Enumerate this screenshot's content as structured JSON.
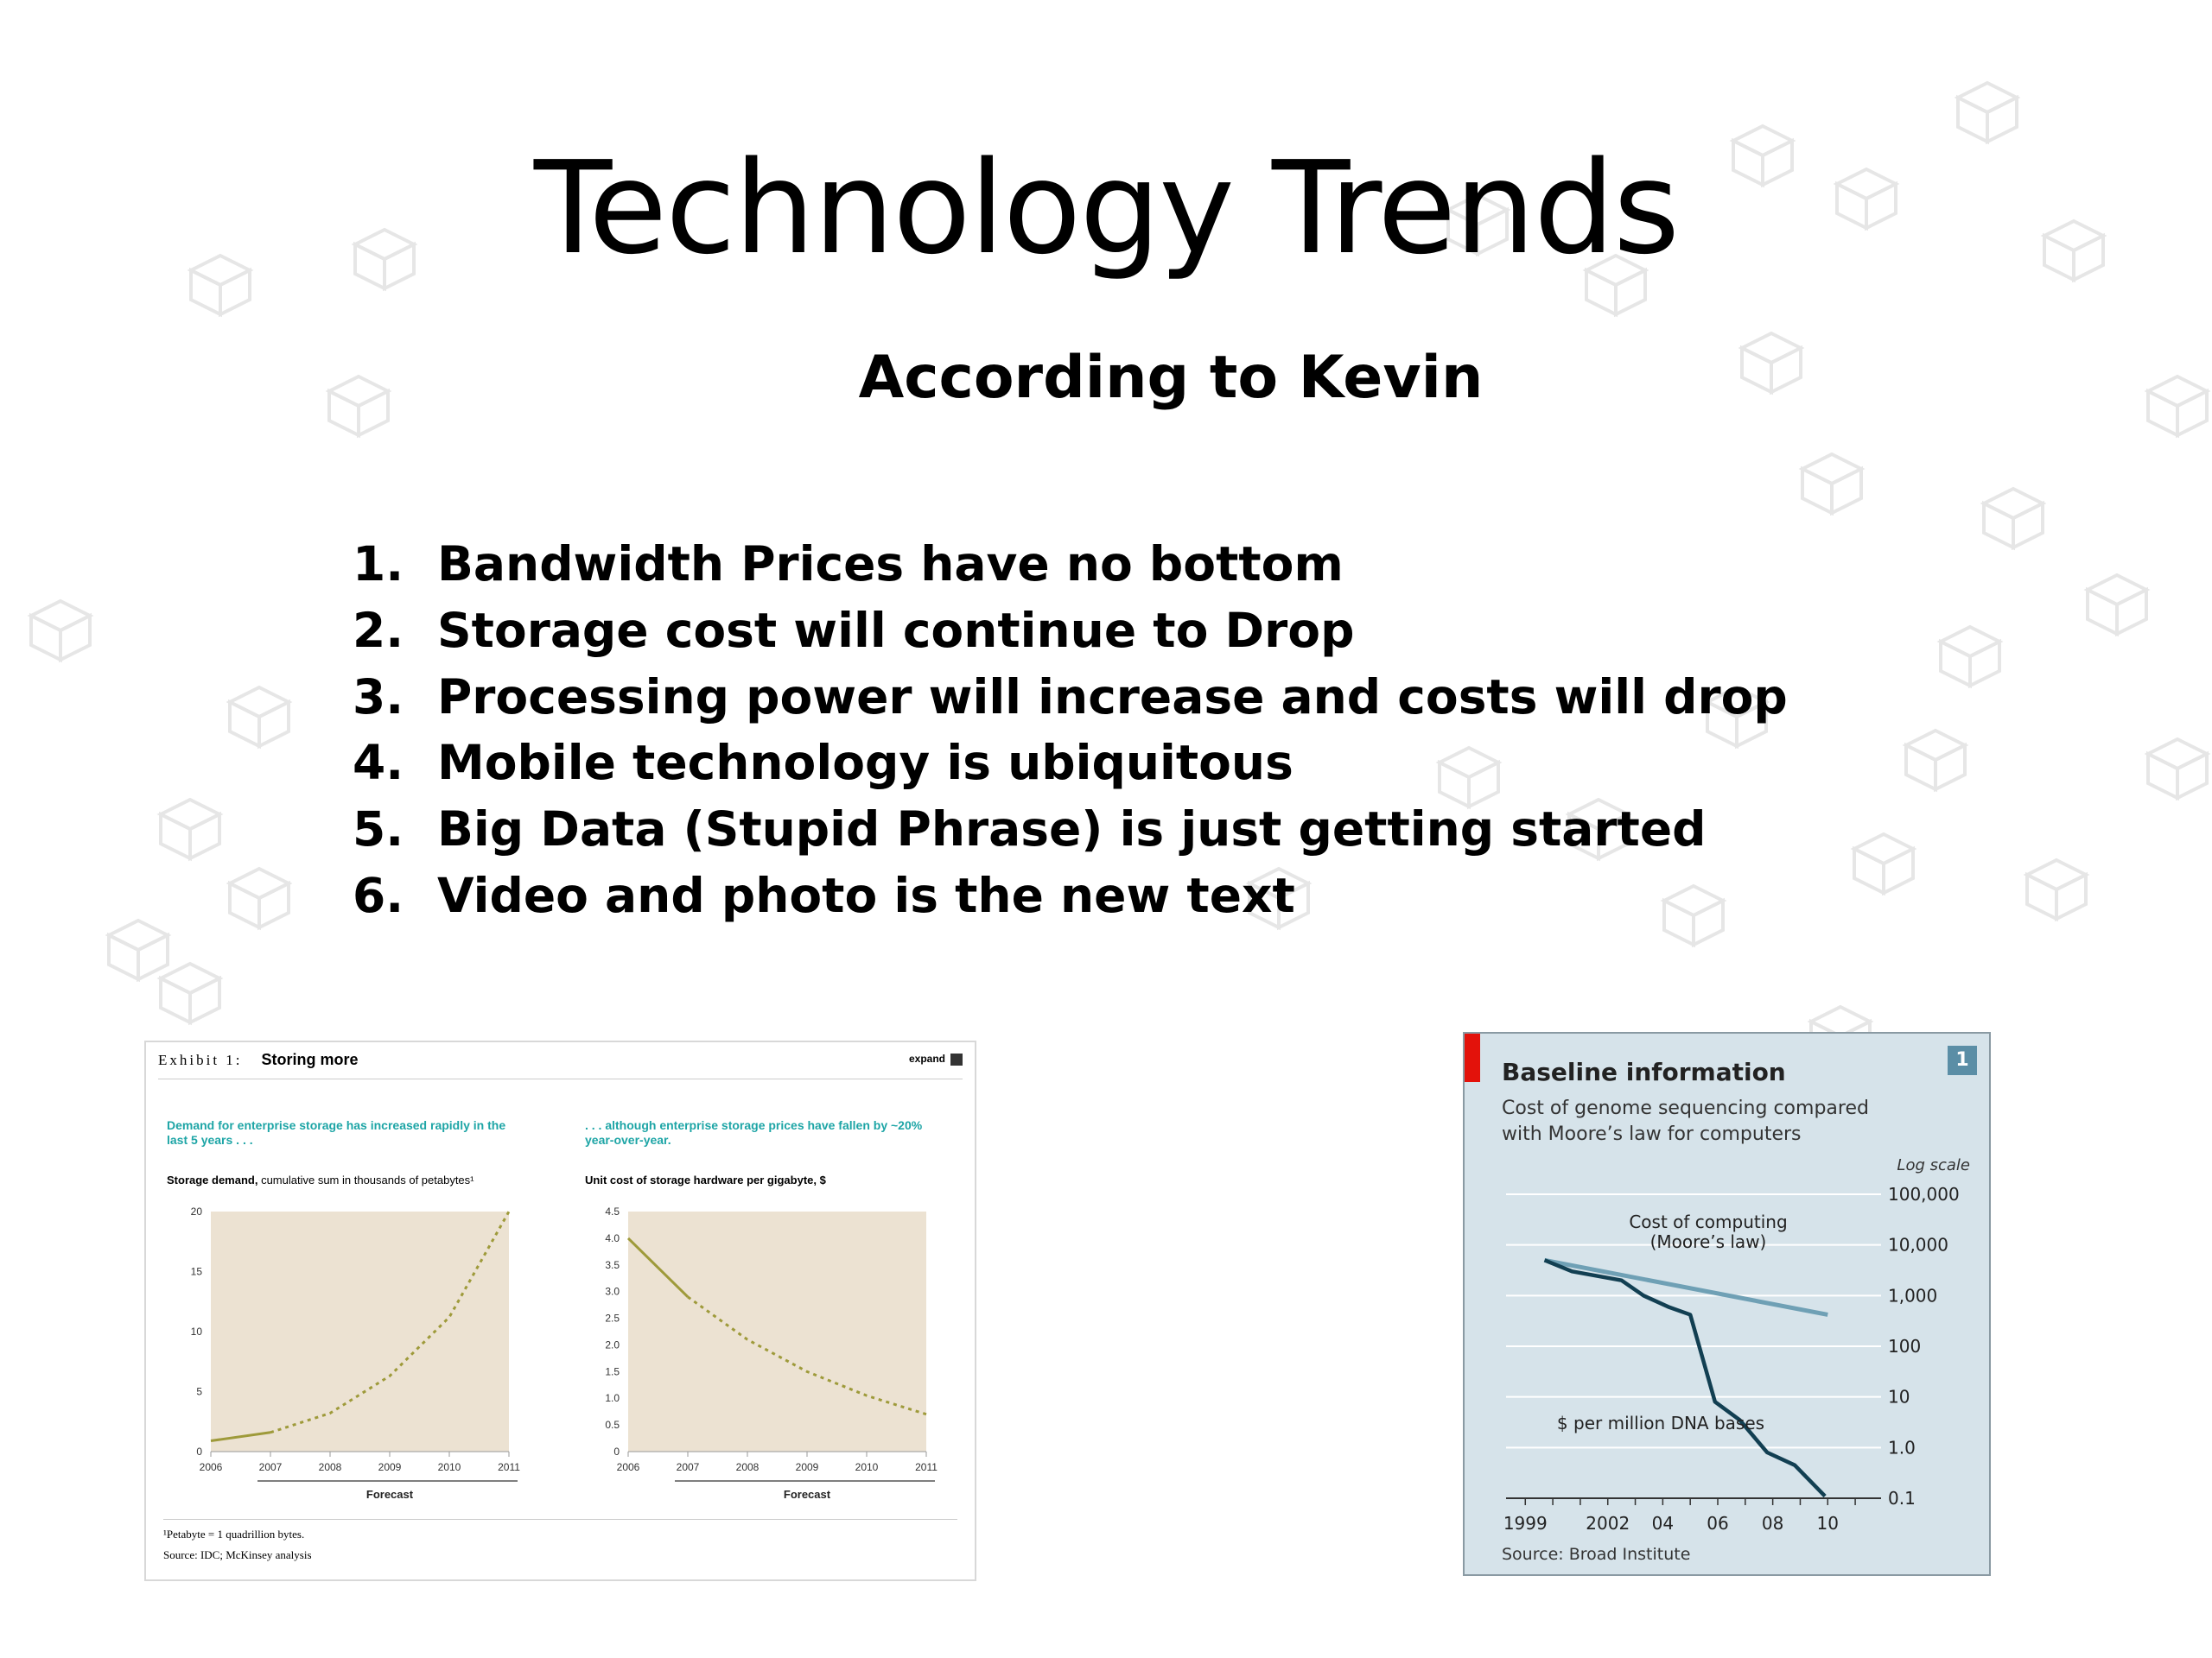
{
  "slide": {
    "title": "Technology Trends",
    "subtitle": "According to Kevin",
    "items": [
      {
        "num": "1.",
        "text": "Bandwidth Prices have no bottom"
      },
      {
        "num": "2.",
        "text": "Storage cost will continue to Drop"
      },
      {
        "num": "3.",
        "text": "Processing power will increase and costs will drop"
      },
      {
        "num": "4.",
        "text": "Mobile technology is ubiquitous"
      },
      {
        "num": "5.",
        "text": "Big Data (Stupid Phrase) is just getting started"
      },
      {
        "num": "6.",
        "text": "Video and photo is the new text"
      }
    ]
  },
  "exhibit": {
    "label": "Exhibit 1:",
    "heading": "Storing more",
    "expand": "expand",
    "left_note": "Demand for enterprise storage has increased rapidly in the last 5 years . . .",
    "right_note": ". . . although enterprise storage prices have fallen by ~20% year-over-year.",
    "left_caption_bold": "Storage demand,",
    "left_caption_rest": " cumulative sum in thousands of petabytes¹",
    "right_caption": "Unit cost of storage hardware per gigabyte, $",
    "footnote": "¹Petabyte = 1 quadrillion bytes.",
    "source": "Source: IDC; McKinsey analysis",
    "forecast_label": "Forecast"
  },
  "economist": {
    "title": "Baseline information",
    "subtitle": "Cost of genome sequencing compared with Moore’s law for computers",
    "badge": "1",
    "scale_note": "Log scale",
    "series_a_label_1": "Cost of computing",
    "series_a_label_2": "(Moore’s law)",
    "series_b_label": "$ per million DNA bases",
    "source": "Source: Broad Institute"
  },
  "chart_data": [
    {
      "type": "line",
      "title": "Storage demand",
      "ylabel": "cumulative sum in thousands of petabytes",
      "x": [
        2006,
        2007,
        2008,
        2009,
        2010,
        2011
      ],
      "x_tick_labels": [
        "2006",
        "2007",
        "2008",
        "2009",
        "2010",
        "2011"
      ],
      "y_tick_labels": [
        "0",
        "5",
        "10",
        "15",
        "20"
      ],
      "ylim": [
        0,
        20
      ],
      "series": [
        {
          "values": [
            0.9,
            1.6,
            3.2,
            6.3,
            11.2,
            20.0
          ]
        }
      ],
      "forecast_from": 2007,
      "color": "#9e9a3a",
      "plot_bg": "#ece2d2"
    },
    {
      "type": "line",
      "title": "Unit cost of storage hardware per gigabyte, $",
      "x": [
        2006,
        2007,
        2008,
        2009,
        2010,
        2011
      ],
      "x_tick_labels": [
        "2006",
        "2007",
        "2008",
        "2009",
        "2010",
        "2011"
      ],
      "y_tick_labels": [
        "0",
        "0.5",
        "1.0",
        "1.5",
        "2.0",
        "2.5",
        "3.0",
        "3.5",
        "4.0",
        "4.5"
      ],
      "ylim": [
        0,
        4.5
      ],
      "series": [
        {
          "values": [
            4.0,
            2.9,
            2.1,
            1.5,
            1.05,
            0.7
          ]
        }
      ],
      "forecast_from": 2007,
      "color": "#9e9a3a",
      "plot_bg": "#ece2d2"
    },
    {
      "type": "line",
      "title": "Baseline information",
      "scale": "log",
      "x_tick_labels": [
        "1999",
        "2002",
        "04",
        "06",
        "08",
        "10"
      ],
      "x_ticks": [
        1999,
        2002,
        2004,
        2006,
        2008,
        2010
      ],
      "y_tick_labels": [
        "0.1",
        "1.0",
        "10",
        "100",
        "1,000",
        "10,000",
        "100,000"
      ],
      "y_ticks": [
        0.1,
        1,
        10,
        100,
        1000,
        10000,
        100000
      ],
      "xlim": [
        1998.3,
        2011.5
      ],
      "series": [
        {
          "name": "Cost of computing (Moore’s law)",
          "color": "#6fa0b5",
          "x": [
            1999.7,
            2010.0
          ],
          "y": [
            5000,
            420
          ]
        },
        {
          "name": "$ per million DNA bases",
          "color": "#123f52",
          "x": [
            1999.7,
            2000.7,
            2002.5,
            2003.3,
            2004.2,
            2005.0,
            2005.9,
            2006.8,
            2007.8,
            2008.8,
            2009.9
          ],
          "y": [
            5000,
            3000,
            2000,
            1000,
            600,
            420,
            8,
            3.5,
            0.8,
            0.45,
            0.11
          ]
        }
      ]
    }
  ]
}
